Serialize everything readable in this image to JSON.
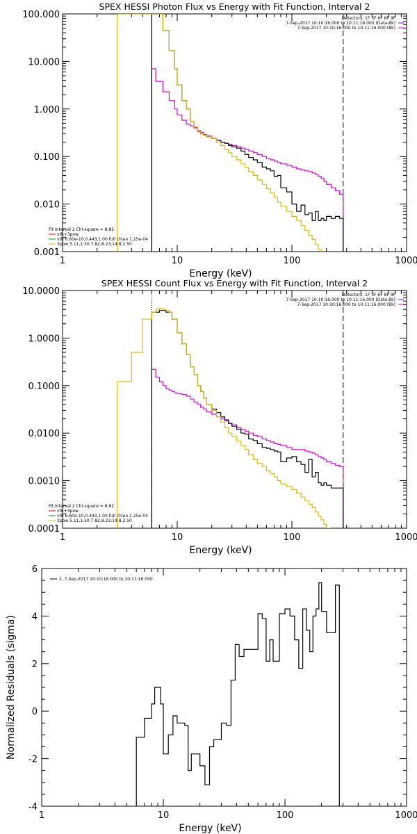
{
  "colors": {
    "black": "#000000",
    "magenta": "#dd00dd",
    "yellow": "#ddbb00",
    "red": "#dd0000",
    "green": "#00aa00",
    "purple": "#7700cc"
  },
  "chart_data": [
    {
      "type": "line",
      "title": "SPEX HESSI Photon Flux vs Energy with Fit Function, Interval 2",
      "xlabel": "Energy (keV)",
      "ylabel": "",
      "xscale": "log",
      "yscale": "log",
      "xlim": [
        1,
        1000
      ],
      "ylim": [
        0.001,
        100
      ],
      "x_tick_labels": [
        "1",
        "10",
        "100",
        "1000"
      ],
      "y_tick_labels": [
        "0.001",
        "0.010",
        "0.100",
        "1.000",
        "10.000",
        "100.000"
      ],
      "info_lines": [
        "Detectors: 1F 3F 6F 8F 9F",
        "7-Sep-2017 10:10:16.000 to 10:11:16.000 (Data-Bk)",
        "7-Sep-2017 10:10:16.000 to 10:11:16.000 (Bk)"
      ],
      "fit_lines": [
        "Fit Interval 2   Chi-square = 8.82",
        "vth+3pow",
        "vth 6.60e-10,0.443,1.00  full chian 1.25e-04",
        "3pow 5.11,1.50,7.82,8.23,14.8,2.50"
      ],
      "vertical_markers": [
        {
          "x": 6,
          "style": "solid"
        },
        {
          "x": 280,
          "style": "dashed"
        }
      ],
      "series": [
        {
          "name": "Data-Bk",
          "color": "#000000",
          "x": [
            6,
            6.5,
            7,
            7.5,
            8,
            8.5,
            9,
            9.5,
            10,
            11,
            12,
            13,
            14,
            15,
            16,
            17,
            18,
            20,
            22,
            24,
            26,
            28,
            30,
            33,
            36,
            39,
            42,
            46,
            50,
            55,
            60,
            65,
            70,
            75,
            80,
            90,
            100,
            110,
            120,
            130,
            140,
            150,
            160,
            170,
            180,
            190,
            200,
            220,
            240,
            260,
            280
          ],
          "y": [
            100,
            100,
            100,
            45,
            45,
            17,
            17,
            7,
            3.2,
            1.5,
            1.0,
            0.55,
            0.42,
            0.33,
            0.3,
            0.28,
            0.26,
            0.24,
            0.22,
            0.2,
            0.19,
            0.17,
            0.16,
            0.15,
            0.13,
            0.11,
            0.095,
            0.085,
            0.075,
            0.06,
            0.055,
            0.05,
            0.038,
            0.04,
            0.022,
            0.018,
            0.01,
            0.007,
            0.0095,
            0.006,
            0.0065,
            0.0045,
            0.007,
            0.0045,
            0.005,
            0.0045,
            0.0055,
            0.005,
            0.0055,
            0.005,
            0.005
          ]
        },
        {
          "name": "Bk",
          "color": "#dd00dd",
          "x": [
            6,
            6.5,
            7,
            7.5,
            8,
            8.5,
            9,
            9.5,
            10,
            11,
            12,
            13,
            14,
            15,
            16,
            17,
            18,
            20,
            22,
            24,
            26,
            28,
            30,
            33,
            36,
            39,
            42,
            46,
            50,
            55,
            60,
            65,
            70,
            75,
            80,
            90,
            100,
            110,
            120,
            130,
            140,
            150,
            160,
            170,
            180,
            190,
            200,
            220,
            240,
            260,
            280
          ],
          "y": [
            7,
            3.8,
            3.8,
            2.3,
            2.3,
            1.5,
            1.5,
            1.0,
            0.75,
            0.58,
            0.48,
            0.44,
            0.4,
            0.35,
            0.32,
            0.29,
            0.27,
            0.24,
            0.22,
            0.2,
            0.19,
            0.18,
            0.17,
            0.16,
            0.15,
            0.14,
            0.13,
            0.12,
            0.11,
            0.1,
            0.09,
            0.085,
            0.08,
            0.075,
            0.07,
            0.065,
            0.06,
            0.055,
            0.052,
            0.05,
            0.048,
            0.045,
            0.042,
            0.038,
            0.035,
            0.03,
            0.026,
            0.022,
            0.019,
            0.016,
            0.013
          ]
        },
        {
          "name": "vth+3pow",
          "color": "#ddbb00",
          "x": [
            3,
            6,
            6.5,
            7,
            7.5,
            8,
            8.5,
            9,
            9.5,
            10,
            11,
            12,
            13,
            14,
            15,
            16,
            17,
            18,
            20,
            22,
            24,
            26,
            28,
            30,
            33,
            36,
            39,
            42,
            46,
            50,
            55,
            60,
            65,
            70,
            75,
            80,
            90,
            100,
            110,
            120,
            130,
            140,
            150,
            160,
            170,
            180
          ],
          "y": [
            100,
            100,
            100,
            100,
            45,
            45,
            17,
            17,
            7,
            3.2,
            1.5,
            1.0,
            0.55,
            0.42,
            0.33,
            0.3,
            0.28,
            0.26,
            0.24,
            0.2,
            0.17,
            0.14,
            0.12,
            0.1,
            0.085,
            0.07,
            0.058,
            0.048,
            0.04,
            0.032,
            0.026,
            0.021,
            0.017,
            0.014,
            0.011,
            0.009,
            0.007,
            0.0055,
            0.0045,
            0.0035,
            0.0028,
            0.0022,
            0.0018,
            0.0014,
            0.0011,
            0.001
          ]
        }
      ]
    },
    {
      "type": "line",
      "title": "SPEX HESSI Count Flux vs Energy with Fit Function, Interval 2",
      "xlabel": "Energy (keV)",
      "ylabel": "",
      "xscale": "log",
      "yscale": "log",
      "xlim": [
        1,
        1000
      ],
      "ylim": [
        0.0001,
        10
      ],
      "x_tick_labels": [
        "1",
        "10",
        "100",
        "1000"
      ],
      "y_tick_labels": [
        "0.0001",
        "0.0010",
        "0.0100",
        "0.1000",
        "1.0000",
        "10.0000"
      ],
      "info_lines": [
        "Detectors: 1F 3F 6F 8F 9F",
        "7-Sep-2017 10:10:16.000 to 10:11:16.000 (Data-Bk)",
        "7-Sep-2017 10:10:16.000 to 10:11:16.000 (Bk)"
      ],
      "fit_lines": [
        "Fit Interval 2   Chi-square = 8.82",
        "vth+3pow",
        "vth 6.60e-10,0.443,1.00  full chian 1.25e-04",
        "3pow 5.11,1.50,7.82,8.23,14.8,2.50"
      ],
      "vertical_markers": [
        {
          "x": 6,
          "style": "dotted"
        },
        {
          "x": 280,
          "style": "dashed"
        }
      ],
      "series": [
        {
          "name": "Data-Bk",
          "color": "#000000",
          "x": [
            6,
            6.5,
            7,
            7.5,
            8,
            8.5,
            9,
            9.5,
            10,
            11,
            12,
            13,
            14,
            15,
            16,
            17,
            18,
            20,
            22,
            24,
            26,
            28,
            30,
            33,
            36,
            39,
            42,
            46,
            50,
            55,
            60,
            65,
            70,
            75,
            80,
            90,
            100,
            110,
            120,
            130,
            140,
            150,
            160,
            170,
            180,
            190,
            200,
            220,
            240,
            260,
            280
          ],
          "y": [
            3.5,
            3.5,
            3.8,
            3.8,
            3.5,
            3.5,
            2.5,
            2.5,
            1.3,
            0.75,
            0.45,
            0.25,
            0.17,
            0.1,
            0.075,
            0.055,
            0.04,
            0.032,
            0.027,
            0.022,
            0.019,
            0.016,
            0.014,
            0.012,
            0.01,
            0.0095,
            0.0075,
            0.007,
            0.006,
            0.005,
            0.0048,
            0.0045,
            0.0042,
            0.004,
            0.0025,
            0.003,
            0.0032,
            0.0025,
            0.0022,
            0.0015,
            0.0028,
            0.0012,
            0.0015,
            0.0009,
            0.0008,
            0.0009,
            0.0008,
            0.0007,
            0.0007,
            0.0007,
            0.0007
          ]
        },
        {
          "name": "Bk",
          "color": "#dd00dd",
          "x": [
            6,
            6.5,
            7,
            7.5,
            8,
            8.5,
            9,
            9.5,
            10,
            11,
            12,
            13,
            14,
            15,
            16,
            17,
            18,
            20,
            22,
            24,
            26,
            28,
            30,
            33,
            36,
            39,
            42,
            46,
            50,
            55,
            60,
            65,
            70,
            75,
            80,
            90,
            100,
            110,
            120,
            130,
            140,
            150,
            160,
            170,
            180,
            190,
            200,
            220,
            240,
            260,
            280
          ],
          "y": [
            0.22,
            0.15,
            0.12,
            0.1,
            0.085,
            0.08,
            0.075,
            0.07,
            0.068,
            0.065,
            0.06,
            0.052,
            0.045,
            0.04,
            0.035,
            0.032,
            0.028,
            0.025,
            0.022,
            0.02,
            0.018,
            0.016,
            0.015,
            0.013,
            0.012,
            0.011,
            0.01,
            0.009,
            0.0085,
            0.0075,
            0.007,
            0.0065,
            0.006,
            0.0058,
            0.0055,
            0.005,
            0.0045,
            0.0045,
            0.0045,
            0.0042,
            0.004,
            0.0038,
            0.0035,
            0.0032,
            0.003,
            0.0028,
            0.0025,
            0.0023,
            0.0021,
            0.002,
            0.0019
          ]
        },
        {
          "name": "vth+3pow",
          "color": "#ddbb00",
          "x": [
            3,
            4,
            5,
            6,
            6.5,
            7,
            7.5,
            8,
            8.5,
            9,
            9.5,
            10,
            11,
            12,
            13,
            14,
            15,
            16,
            17,
            18,
            20,
            22,
            24,
            26,
            28,
            30,
            33,
            36,
            39,
            42,
            46,
            50,
            55,
            60,
            65,
            70,
            75,
            80,
            90,
            100,
            110,
            120,
            130,
            140,
            150,
            160,
            170,
            180,
            190,
            200,
            220
          ],
          "y": [
            0.12,
            0.5,
            2.5,
            3.5,
            4.0,
            4.2,
            4.0,
            3.8,
            3.5,
            2.5,
            2.5,
            1.3,
            0.75,
            0.45,
            0.25,
            0.17,
            0.1,
            0.075,
            0.055,
            0.04,
            0.03,
            0.022,
            0.017,
            0.013,
            0.01,
            0.0085,
            0.0068,
            0.0055,
            0.0045,
            0.0035,
            0.0028,
            0.0023,
            0.002,
            0.0016,
            0.0014,
            0.0012,
            0.001,
            0.00085,
            0.00075,
            0.00065,
            0.00055,
            0.00045,
            0.00038,
            0.00032,
            0.00027,
            0.00022,
            0.00018,
            0.00015,
            0.00012,
            0.0001,
            0.0001
          ]
        }
      ]
    },
    {
      "type": "line",
      "title": "",
      "xlabel": "Energy (keV)",
      "ylabel": "Normalized Residuals (sigma)",
      "xscale": "log",
      "yscale": "linear",
      "xlim": [
        1,
        1000
      ],
      "ylim": [
        -4,
        6
      ],
      "x_tick_labels": [
        "1",
        "10",
        "100",
        "1000"
      ],
      "y_tick_labels": [
        "-4",
        "-2",
        "0",
        "2",
        "4",
        "6"
      ],
      "legend": [
        "2,  7-Sep-2017 10:10:16.000 to 10:11:16.000"
      ],
      "series": [
        {
          "name": "2",
          "color": "#000000",
          "x": [
            6,
            6.5,
            7,
            7.5,
            8,
            8.5,
            9,
            9.5,
            10,
            11,
            12,
            13,
            14,
            15,
            16,
            17,
            18,
            20,
            22,
            24,
            26,
            28,
            30,
            33,
            36,
            39,
            42,
            46,
            50,
            55,
            60,
            65,
            70,
            75,
            80,
            90,
            100,
            110,
            120,
            130,
            140,
            150,
            160,
            170,
            180,
            190,
            200,
            220,
            240,
            260,
            280
          ],
          "y": [
            -1.1,
            -1.1,
            -0.3,
            -0.3,
            0.3,
            1.0,
            1.0,
            0.3,
            -1.8,
            -1.0,
            -0.2,
            -0.5,
            -0.5,
            -0.6,
            -2.5,
            -1.8,
            -1.8,
            -2.3,
            -3.1,
            -1.5,
            -1.2,
            -1.2,
            -0.5,
            -0.6,
            1.3,
            2.8,
            2.3,
            2.6,
            2.6,
            2.6,
            4.1,
            3.9,
            2.1,
            3.0,
            2.1,
            4.1,
            4.3,
            4.0,
            3.0,
            1.8,
            4.3,
            3.4,
            2.5,
            4.0,
            4.3,
            5.4,
            4.2,
            3.3,
            3.3,
            5.3,
            5.3
          ]
        }
      ]
    }
  ]
}
